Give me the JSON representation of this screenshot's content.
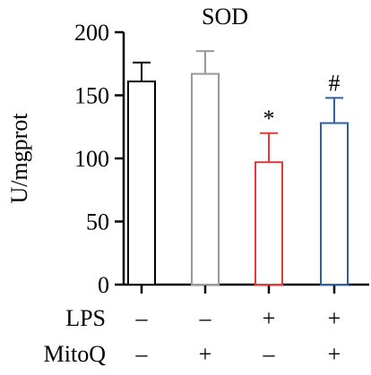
{
  "chart_data": {
    "type": "bar",
    "title": "SOD",
    "ylabel": "U/mgprot",
    "xlabel": "",
    "ylim": [
      0,
      200
    ],
    "yticks": [
      0,
      50,
      100,
      150,
      200
    ],
    "bars": [
      {
        "value": 161,
        "error": 15,
        "color": "#000000",
        "annotation": ""
      },
      {
        "value": 167,
        "error": 18,
        "color": "#999999",
        "annotation": ""
      },
      {
        "value": 97,
        "error": 23,
        "color": "#e23a3a",
        "annotation": "*"
      },
      {
        "value": 128,
        "error": 20,
        "color": "#2e5fa6",
        "annotation": "#"
      }
    ],
    "conditions": [
      {
        "label": "LPS",
        "values": [
          "–",
          "–",
          "+",
          "+"
        ]
      },
      {
        "label": "MitoQ",
        "values": [
          "–",
          "+",
          "–",
          "+"
        ]
      }
    ],
    "grid": false,
    "legend": "none"
  }
}
